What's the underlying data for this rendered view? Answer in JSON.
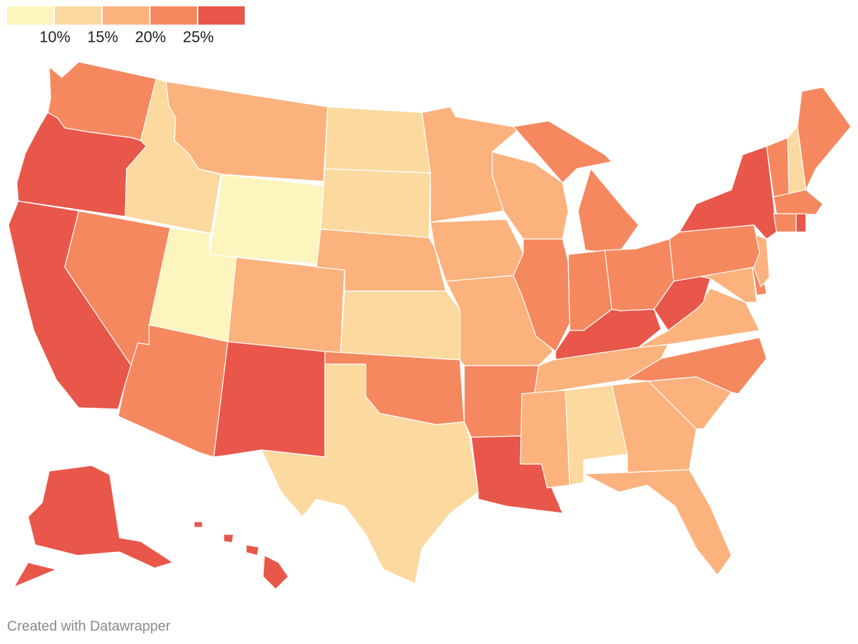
{
  "legend": {
    "ticks": [
      "10%",
      "15%",
      "20%",
      "25%"
    ],
    "colors": [
      "#fdf5be",
      "#fbd99f",
      "#fcb27d",
      "#f6885f",
      "#e8574a"
    ]
  },
  "credit": "Created with Datawrapper",
  "states": [
    {
      "id": "WA",
      "bin": 3
    },
    {
      "id": "OR",
      "bin": 4
    },
    {
      "id": "CA",
      "bin": 4
    },
    {
      "id": "NV",
      "bin": 3
    },
    {
      "id": "ID",
      "bin": 1
    },
    {
      "id": "MT",
      "bin": 2
    },
    {
      "id": "WY",
      "bin": 0
    },
    {
      "id": "UT",
      "bin": 0
    },
    {
      "id": "AZ",
      "bin": 3
    },
    {
      "id": "CO",
      "bin": 2
    },
    {
      "id": "NM",
      "bin": 4
    },
    {
      "id": "ND",
      "bin": 1
    },
    {
      "id": "SD",
      "bin": 1
    },
    {
      "id": "NE",
      "bin": 2
    },
    {
      "id": "KS",
      "bin": 1
    },
    {
      "id": "OK",
      "bin": 3
    },
    {
      "id": "TX",
      "bin": 1
    },
    {
      "id": "MN",
      "bin": 2
    },
    {
      "id": "IA",
      "bin": 2
    },
    {
      "id": "MO",
      "bin": 2
    },
    {
      "id": "AR",
      "bin": 3
    },
    {
      "id": "LA",
      "bin": 4
    },
    {
      "id": "WI",
      "bin": 2
    },
    {
      "id": "IL",
      "bin": 3
    },
    {
      "id": "MI",
      "bin": 3
    },
    {
      "id": "IN",
      "bin": 3
    },
    {
      "id": "OH",
      "bin": 3
    },
    {
      "id": "KY",
      "bin": 4
    },
    {
      "id": "TN",
      "bin": 2
    },
    {
      "id": "MS",
      "bin": 2
    },
    {
      "id": "AL",
      "bin": 1
    },
    {
      "id": "GA",
      "bin": 2
    },
    {
      "id": "FL",
      "bin": 2
    },
    {
      "id": "SC",
      "bin": 2
    },
    {
      "id": "NC",
      "bin": 3
    },
    {
      "id": "VA",
      "bin": 2
    },
    {
      "id": "WV",
      "bin": 4
    },
    {
      "id": "MD",
      "bin": 2
    },
    {
      "id": "DE",
      "bin": 3
    },
    {
      "id": "NJ",
      "bin": 2
    },
    {
      "id": "PA",
      "bin": 3
    },
    {
      "id": "NY",
      "bin": 4
    },
    {
      "id": "VT",
      "bin": 3
    },
    {
      "id": "NH",
      "bin": 1
    },
    {
      "id": "ME",
      "bin": 3
    },
    {
      "id": "MA",
      "bin": 3
    },
    {
      "id": "CT",
      "bin": 3
    },
    {
      "id": "RI",
      "bin": 4
    },
    {
      "id": "AK",
      "bin": 4
    },
    {
      "id": "HI",
      "bin": 4
    }
  ]
}
